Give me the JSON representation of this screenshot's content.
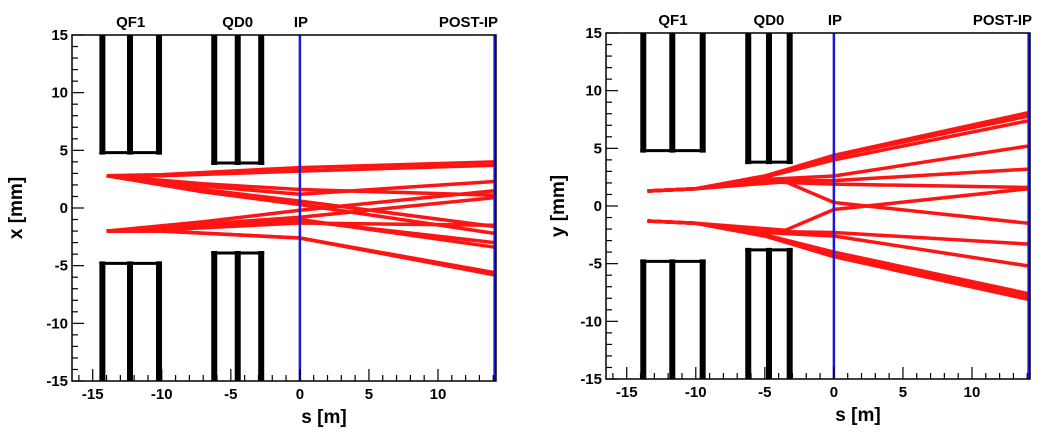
{
  "chart_data": [
    {
      "type": "line",
      "xlabel": "s [m]",
      "ylabel": "x [mm]",
      "xlim": [
        -16.5,
        14.2
      ],
      "ylim": [
        -15,
        15
      ],
      "xticks": [
        -15,
        -10,
        -5,
        0,
        5,
        10
      ],
      "yticks": [
        -15,
        -10,
        -5,
        0,
        5,
        10,
        15
      ],
      "xtick_labels": [
        "-15",
        "-10",
        "-5",
        "0",
        "5",
        "10"
      ],
      "ytick_labels": [
        "-15",
        "-10",
        "-5",
        "0",
        "5",
        "10",
        "15"
      ],
      "grid": false,
      "markers": [
        {
          "label": "IP",
          "s": 0,
          "color": "#1a1ad6"
        },
        {
          "label": "POST-IP",
          "s": 14.1,
          "color": "#1a1ad6"
        }
      ],
      "elements": [
        {
          "label": "QF1",
          "s_start": -14.3,
          "s_end": -10.2,
          "aperture": 4.8,
          "bars": [
            -14.3,
            -12.3,
            -10.2
          ]
        },
        {
          "label": "QD0",
          "s_start": -6.2,
          "s_end": -2.8,
          "aperture": 3.9,
          "bars": [
            -6.2,
            -4.5,
            -2.8
          ]
        }
      ],
      "series_color": "#ff1414",
      "series": [
        {
          "s": [
            -14,
            -10,
            0,
            14.1
          ],
          "y": [
            2.8,
            2.9,
            3.5,
            4.0
          ]
        },
        {
          "s": [
            -14,
            -10,
            0,
            14.1
          ],
          "y": [
            2.8,
            2.8,
            3.2,
            3.7
          ]
        },
        {
          "s": [
            -14,
            -7,
            0,
            14.1
          ],
          "y": [
            2.8,
            1.6,
            0.6,
            -1.6
          ]
        },
        {
          "s": [
            -14,
            -7,
            0,
            14.1
          ],
          "y": [
            2.8,
            1.4,
            0.3,
            -2.2
          ]
        },
        {
          "s": [
            -14,
            -7,
            0,
            14.1
          ],
          "y": [
            2.8,
            1.9,
            1.2,
            2.3
          ]
        },
        {
          "s": [
            -14,
            -7,
            0,
            14.1
          ],
          "y": [
            2.8,
            2.1,
            1.6,
            1.1
          ]
        },
        {
          "s": [
            -14,
            -10,
            0,
            14.1
          ],
          "y": [
            -2.0,
            -1.9,
            -1.3,
            -1.5
          ]
        },
        {
          "s": [
            -14,
            -7,
            0,
            14.1
          ],
          "y": [
            -2.0,
            -1.4,
            -0.8,
            0.9
          ]
        },
        {
          "s": [
            -14,
            -7,
            0,
            14.1
          ],
          "y": [
            -2.0,
            -1.2,
            -0.2,
            1.5
          ]
        },
        {
          "s": [
            -14,
            -7,
            0,
            14.1
          ],
          "y": [
            -2.0,
            -1.6,
            -1.1,
            -3.0
          ]
        },
        {
          "s": [
            -14,
            -10,
            0,
            14.1
          ],
          "y": [
            -2.0,
            -2.0,
            -2.6,
            -5.6
          ]
        },
        {
          "s": [
            -14,
            -10,
            0,
            14.1
          ],
          "y": [
            -2.0,
            -2.0,
            -2.6,
            -5.8
          ]
        },
        {
          "s": [
            -14,
            -7,
            0,
            14.1
          ],
          "y": [
            -2.0,
            -1.5,
            -1.0,
            -3.4
          ]
        }
      ]
    },
    {
      "type": "line",
      "xlabel": "s [m]",
      "ylabel": "y [mm]",
      "xlim": [
        -16.5,
        14.2
      ],
      "ylim": [
        -15,
        15
      ],
      "xticks": [
        -15,
        -10,
        -5,
        0,
        5,
        10
      ],
      "yticks": [
        -15,
        -10,
        -5,
        0,
        5,
        10,
        15
      ],
      "xtick_labels": [
        "-15",
        "-10",
        "-5",
        "0",
        "5",
        "10"
      ],
      "ytick_labels": [
        "-15",
        "-10",
        "-5",
        "0",
        "5",
        "10",
        "15"
      ],
      "grid": false,
      "markers": [
        {
          "label": "IP",
          "s": 0,
          "color": "#1a1ad6"
        },
        {
          "label": "POST-IP",
          "s": 14.1,
          "color": "#1a1ad6"
        }
      ],
      "elements": [
        {
          "label": "QF1",
          "s_start": -13.8,
          "s_end": -9.5,
          "aperture": 4.8,
          "bars": [
            -13.8,
            -11.7,
            -9.5
          ]
        },
        {
          "label": "QD0",
          "s_start": -6.2,
          "s_end": -3.2,
          "aperture": 3.8,
          "bars": [
            -6.2,
            -4.7,
            -3.2
          ]
        }
      ],
      "series_color": "#ff1414",
      "series": [
        {
          "s": [
            -13.5,
            -10,
            -5,
            0,
            14.1
          ],
          "y": [
            1.3,
            1.5,
            2.6,
            4.3,
            7.8
          ]
        },
        {
          "s": [
            -13.5,
            -10,
            -5,
            0,
            14.1
          ],
          "y": [
            1.3,
            1.5,
            2.6,
            4.4,
            8.1
          ]
        },
        {
          "s": [
            -13.5,
            -10,
            -5,
            0,
            14.1
          ],
          "y": [
            1.3,
            1.5,
            2.5,
            4.0,
            7.4
          ]
        },
        {
          "s": [
            -13.5,
            -10,
            -5,
            0,
            14.1
          ],
          "y": [
            1.3,
            1.5,
            2.3,
            2.6,
            5.2
          ]
        },
        {
          "s": [
            -13.5,
            -10,
            -5,
            0,
            14.1
          ],
          "y": [
            1.3,
            1.5,
            2.2,
            2.2,
            3.2
          ]
        },
        {
          "s": [
            -13.5,
            -10,
            -5,
            0,
            14.1
          ],
          "y": [
            1.3,
            1.5,
            2.1,
            1.9,
            1.6
          ]
        },
        {
          "s": [
            -13.5,
            -10,
            -3.5,
            0,
            14.1
          ],
          "y": [
            1.3,
            1.5,
            2.1,
            0.3,
            -1.5
          ]
        },
        {
          "s": [
            -13.5,
            -10,
            -5,
            0,
            14.1
          ],
          "y": [
            -1.3,
            -1.5,
            -2.6,
            -4.3,
            -7.8
          ]
        },
        {
          "s": [
            -13.5,
            -10,
            -5,
            0,
            14.1
          ],
          "y": [
            -1.3,
            -1.5,
            -2.6,
            -4.4,
            -8.1
          ]
        },
        {
          "s": [
            -13.5,
            -10,
            -5,
            0,
            14.1
          ],
          "y": [
            -1.3,
            -1.5,
            -2.5,
            -4.0,
            -7.6
          ]
        },
        {
          "s": [
            -13.5,
            -10,
            -5,
            0,
            14.1
          ],
          "y": [
            -1.3,
            -1.5,
            -2.3,
            -2.6,
            -5.2
          ]
        },
        {
          "s": [
            -13.5,
            -10,
            -5,
            0,
            14.1
          ],
          "y": [
            -1.3,
            -1.5,
            -2.2,
            -2.3,
            -3.3
          ]
        },
        {
          "s": [
            -13.5,
            -10,
            -3.5,
            0,
            14.1
          ],
          "y": [
            -1.3,
            -1.5,
            -2.1,
            -0.3,
            1.5
          ]
        }
      ]
    }
  ]
}
